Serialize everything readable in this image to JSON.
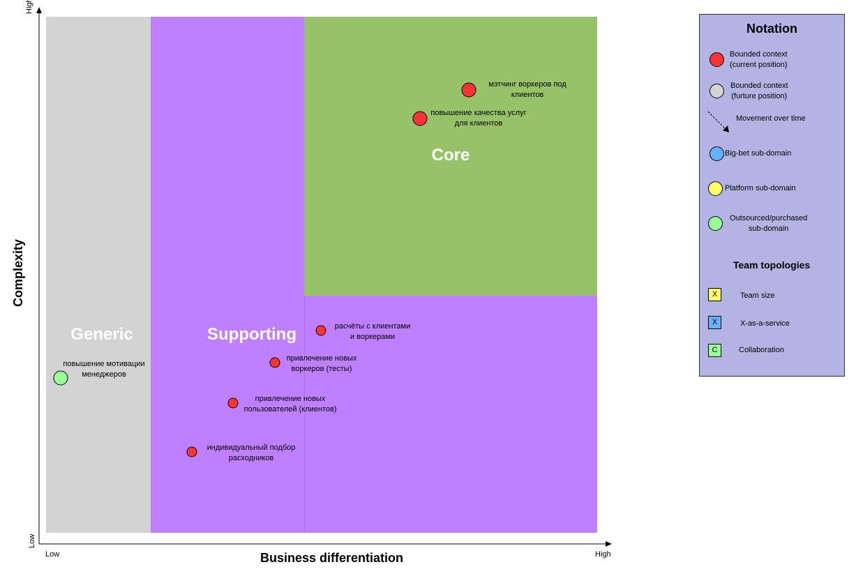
{
  "axes": {
    "x_title": "Business differentiation",
    "y_title": "Complexity",
    "x_low": "Low",
    "x_high": "High",
    "y_low": "Low",
    "y_high": "High"
  },
  "regions": {
    "generic": {
      "label": "Generic",
      "color": "#d3d3d3"
    },
    "supporting": {
      "label": "Supporting",
      "color": "#bf80ff"
    },
    "core": {
      "label": "Core",
      "color": "#97c267"
    }
  },
  "contexts": [
    {
      "line1": "мэтчинг воркеров под",
      "line2": "клиентов",
      "type": "current"
    },
    {
      "line1": "повышение качества услуг",
      "line2": "для клиентов",
      "type": "current"
    },
    {
      "line1": "расчёты с клиентами",
      "line2": "и воркерами",
      "type": "current"
    },
    {
      "line1": "привлечение новых",
      "line2": "воркеров (тесты)",
      "type": "current"
    },
    {
      "line1": "привлечение новых",
      "line2": "пользователей (клиентов)",
      "type": "current"
    },
    {
      "line1": "индивидуальный подбор",
      "line2": "расходников",
      "type": "current"
    },
    {
      "line1": "повышение мотивации",
      "line2": "менеджеров",
      "type": "outsourced"
    }
  ],
  "legend": {
    "title": "Notation",
    "current_l1": "Bounded context",
    "current_l2": "(current position)",
    "future_l1": "Bounded context",
    "future_l2": "(furture position)",
    "movement": "Movement over time",
    "bigbet": "Big-bet sub-domain",
    "platform": "Platform sub-domain",
    "outsourced_l1": "Outsourced/purchased",
    "outsourced_l2": "sub-domain",
    "topologies_title": "Team topologies",
    "team_size_mark": "X",
    "team_size": "Team size",
    "xaas_mark": "X",
    "xaas": "X-as-a-service",
    "collab_mark": "C",
    "collab": "Collaboration"
  },
  "colors": {
    "current": "#ff3333",
    "future": "#d3d3d3",
    "bigbet": "#66b2ff",
    "platform": "#ffff66",
    "outsourced": "#99ff99",
    "legend_bg": "#b4b4e4"
  }
}
